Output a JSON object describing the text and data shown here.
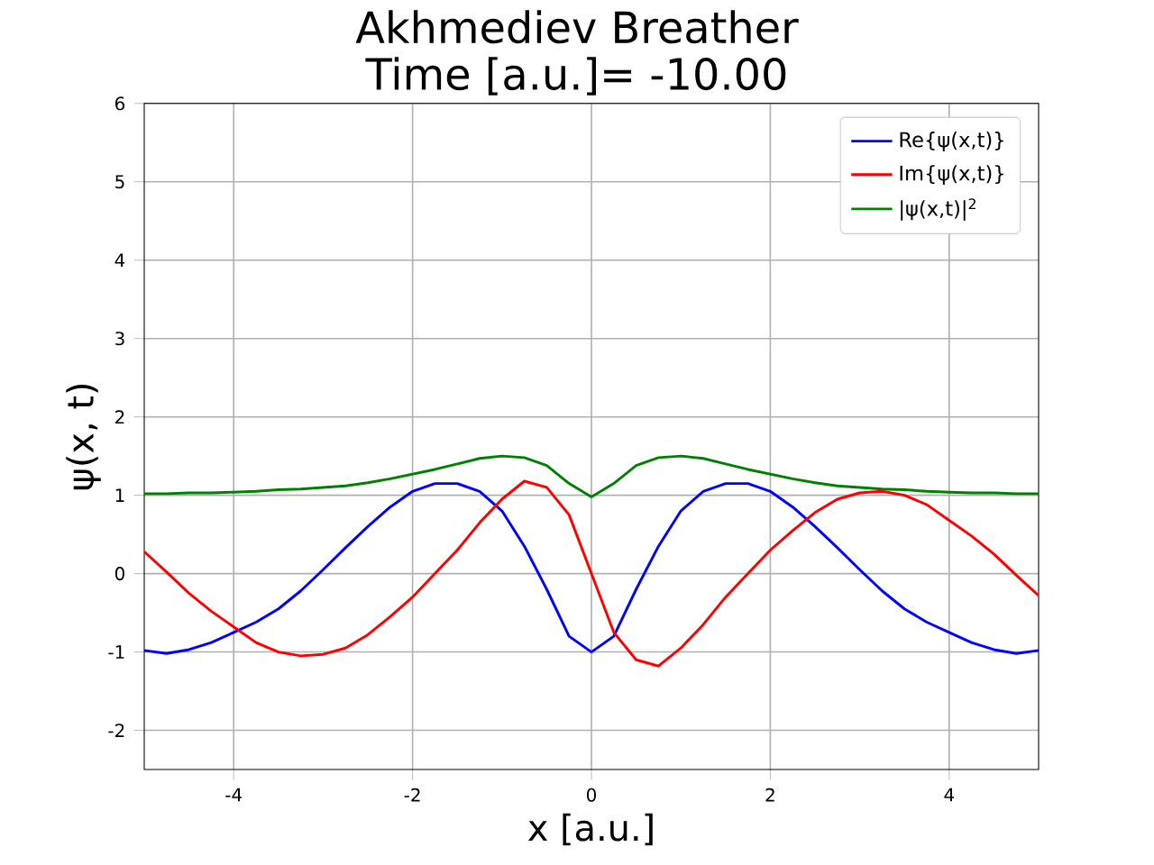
{
  "chart_data": {
    "type": "line",
    "title": "Akhmediev Breather",
    "subtitle": "Time [a.u.]= -10.00",
    "xlabel": "x [a.u.]",
    "ylabel": "ψ(x, t)",
    "x": [
      -5,
      -4.75,
      -4.5,
      -4.25,
      -4,
      -3.75,
      -3.5,
      -3.25,
      -3,
      -2.75,
      -2.5,
      -2.25,
      -2,
      -1.75,
      -1.5,
      -1.25,
      -1,
      -0.75,
      -0.5,
      -0.25,
      0,
      0.25,
      0.5,
      0.75,
      1,
      1.25,
      1.5,
      1.75,
      2,
      2.25,
      2.5,
      2.75,
      3,
      3.25,
      3.5,
      3.75,
      4,
      4.25,
      4.5,
      4.75,
      5
    ],
    "series": [
      {
        "name": "Re{ψ(x,t)}",
        "color": "#0000ff",
        "values": [
          -0.98,
          -1.02,
          -0.97,
          -0.88,
          -0.75,
          -0.62,
          -0.45,
          -0.22,
          0.05,
          0.33,
          0.6,
          0.85,
          1.05,
          1.15,
          1.15,
          1.05,
          0.8,
          0.35,
          -0.2,
          -0.8,
          -1.0,
          -0.8,
          -0.2,
          0.35,
          0.8,
          1.05,
          1.15,
          1.15,
          1.05,
          0.85,
          0.6,
          0.33,
          0.05,
          -0.22,
          -0.45,
          -0.62,
          -0.75,
          -0.88,
          -0.97,
          -1.02,
          -0.98
        ]
      },
      {
        "name": "Im{ψ(x,t)}",
        "color": "#ff0000",
        "values": [
          0.28,
          0.02,
          -0.25,
          -0.48,
          -0.68,
          -0.88,
          -1.0,
          -1.05,
          -1.03,
          -0.95,
          -0.78,
          -0.55,
          -0.3,
          0.0,
          0.3,
          0.65,
          0.95,
          1.18,
          1.1,
          0.75,
          0.0,
          -0.75,
          -1.1,
          -1.18,
          -0.95,
          -0.65,
          -0.3,
          0.0,
          0.3,
          0.55,
          0.78,
          0.95,
          1.03,
          1.05,
          1.0,
          0.88,
          0.68,
          0.48,
          0.25,
          -0.02,
          -0.28
        ]
      },
      {
        "name": "|ψ(x,t)|$^{2}$",
        "color": "#008000",
        "values": [
          1.02,
          1.02,
          1.03,
          1.03,
          1.04,
          1.05,
          1.07,
          1.08,
          1.1,
          1.12,
          1.16,
          1.21,
          1.27,
          1.33,
          1.4,
          1.47,
          1.5,
          1.48,
          1.38,
          1.15,
          0.98,
          1.15,
          1.38,
          1.48,
          1.5,
          1.47,
          1.4,
          1.33,
          1.27,
          1.21,
          1.16,
          1.12,
          1.1,
          1.08,
          1.07,
          1.05,
          1.04,
          1.03,
          1.03,
          1.02,
          1.02
        ]
      }
    ],
    "xlim": [
      -5,
      5
    ],
    "ylim": [
      -2.5,
      6
    ],
    "xticks": [
      -4,
      -2,
      0,
      2,
      4
    ],
    "yticks": [
      -2,
      -1,
      0,
      1,
      2,
      3,
      4,
      5,
      6
    ],
    "grid": true,
    "legend": "top right"
  }
}
